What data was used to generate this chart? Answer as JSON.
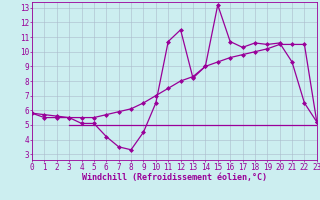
{
  "xlabel": "Windchill (Refroidissement éolien,°C)",
  "bg_color": "#cceef0",
  "line_color": "#990099",
  "grid_color": "#aabbcc",
  "xlim": [
    0,
    23
  ],
  "ylim": [
    2.6,
    13.4
  ],
  "yticks": [
    3,
    4,
    5,
    6,
    7,
    8,
    9,
    10,
    11,
    12,
    13
  ],
  "xticks": [
    0,
    1,
    2,
    3,
    4,
    5,
    6,
    7,
    8,
    9,
    10,
    11,
    12,
    13,
    14,
    15,
    16,
    17,
    18,
    19,
    20,
    21,
    22,
    23
  ],
  "series1_x": [
    0,
    1,
    2,
    3,
    4,
    5,
    6,
    7,
    8,
    9,
    10,
    11,
    12,
    13,
    14,
    15,
    16,
    17,
    18,
    19,
    20,
    21,
    22,
    23
  ],
  "series1_y": [
    5.8,
    5.5,
    5.5,
    5.5,
    5.1,
    5.1,
    4.2,
    3.5,
    3.3,
    4.5,
    6.5,
    10.7,
    11.5,
    8.2,
    9.0,
    13.2,
    10.7,
    10.3,
    10.6,
    10.5,
    10.6,
    9.3,
    6.5,
    5.2
  ],
  "series2_x": [
    0,
    1,
    2,
    3,
    4,
    5,
    6,
    7,
    8,
    9,
    10,
    11,
    12,
    13,
    14,
    15,
    16,
    17,
    18,
    19,
    20,
    21,
    22,
    23
  ],
  "series2_y": [
    5.8,
    5.7,
    5.6,
    5.5,
    5.5,
    5.5,
    5.7,
    5.9,
    6.1,
    6.5,
    7.0,
    7.5,
    8.0,
    8.3,
    9.0,
    9.3,
    9.6,
    9.8,
    10.0,
    10.2,
    10.5,
    10.5,
    10.5,
    5.2
  ],
  "flat_line_x": [
    3,
    23
  ],
  "flat_line_y": [
    5.0,
    5.0
  ],
  "marker": "D",
  "marker_size": 2.0,
  "tick_fontsize": 5.5,
  "xlabel_fontsize": 6.0
}
